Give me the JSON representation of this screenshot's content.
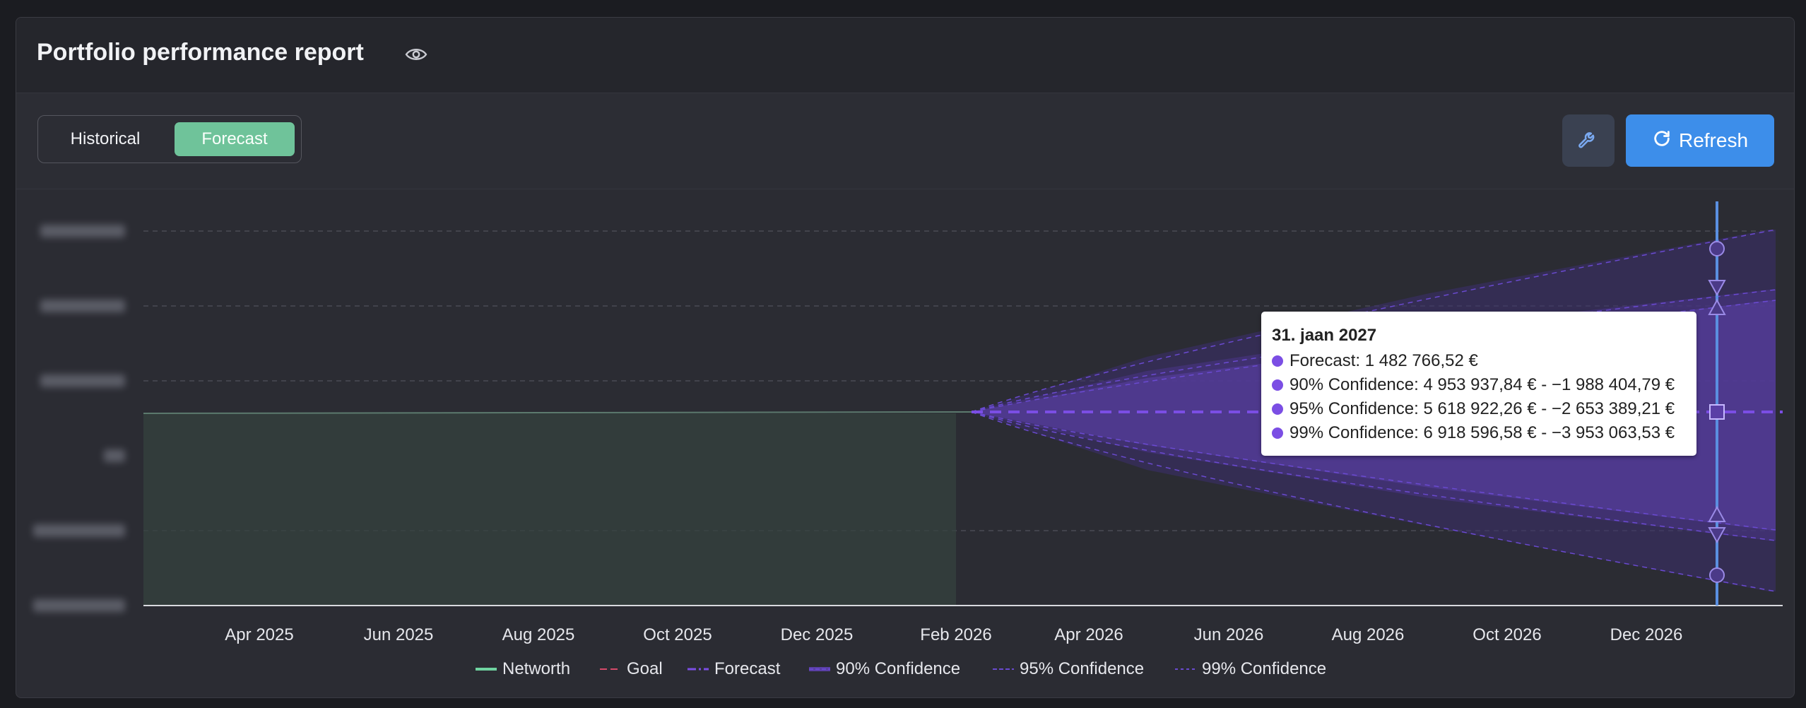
{
  "header": {
    "title": "Portfolio performance report"
  },
  "toolbar": {
    "segments": [
      "Historical",
      "Forecast"
    ],
    "active_segment": "Forecast",
    "refresh_label": "Refresh"
  },
  "tooltip": {
    "date": "31. jaan 2027",
    "rows": [
      "Forecast: 1 482 766,52 €",
      "90% Confidence: 4 953 937,84 € - −1 988 404,79 €",
      "95% Confidence: 5 618 922,26 € - −2 653 389,21 €",
      "99% Confidence: 6 918 596,58 € - −3 953 063,53 €"
    ]
  },
  "colors": {
    "accent_green": "#6fc39a",
    "refresh_blue": "#3d8eea",
    "networth": "#6fd3a0",
    "goal": "#d64a6a",
    "forecast": "#7b4ee4",
    "confidence": "#6a4ad0"
  },
  "chart_data": {
    "type": "area",
    "x_tick_labels": [
      "Apr 2025",
      "Jun 2025",
      "Aug 2025",
      "Oct 2025",
      "Dec 2025",
      "Feb 2026",
      "Apr 2026",
      "Jun 2026",
      "Aug 2026",
      "Oct 2026",
      "Dec 2026"
    ],
    "y_tick_labels_blurred": true,
    "grid": "horizontal dashed",
    "legend_position": "bottom",
    "legend": [
      "Networth",
      "Goal",
      "Forecast",
      "90% Confidence",
      "95% Confidence",
      "99% Confidence"
    ],
    "series": [
      {
        "name": "Networth",
        "x": [
          "2025-02",
          "2026-02"
        ],
        "values": [
          1482766.52,
          1482766.52
        ]
      },
      {
        "name": "Forecast",
        "x": [
          "2026-02",
          "2027-01-31"
        ],
        "values": [
          1482766.52,
          1482766.52
        ]
      },
      {
        "name": "90% Confidence",
        "x": [
          "2026-02",
          "2027-01-31"
        ],
        "upper": [
          1482766.52,
          4953937.84
        ],
        "lower": [
          1482766.52,
          -1988404.79
        ]
      },
      {
        "name": "95% Confidence",
        "x": [
          "2026-02",
          "2027-01-31"
        ],
        "upper": [
          1482766.52,
          5618922.26
        ],
        "lower": [
          1482766.52,
          -2653389.21
        ]
      },
      {
        "name": "99% Confidence",
        "x": [
          "2026-02",
          "2027-01-31"
        ],
        "upper": [
          1482766.52,
          6918596.58
        ],
        "lower": [
          1482766.52,
          -3953063.53
        ]
      }
    ],
    "hover_date": "31. jaan 2027"
  }
}
